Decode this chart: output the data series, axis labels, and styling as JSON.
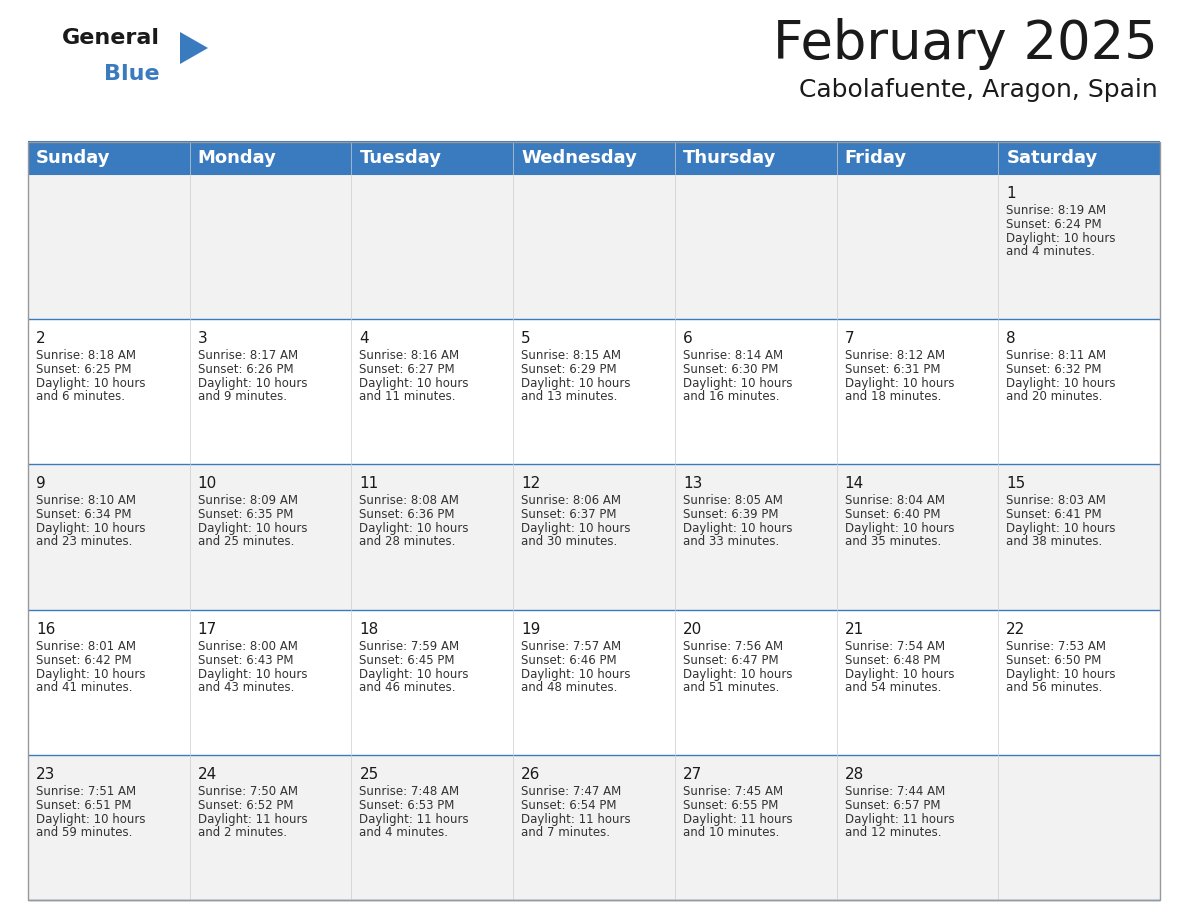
{
  "title": "February 2025",
  "subtitle": "Cabolafuente, Aragon, Spain",
  "header_color": "#3a7bbf",
  "header_text_color": "#ffffff",
  "cell_bg_row0": "#f2f2f2",
  "cell_bg_row1": "#ffffff",
  "row_sep_color": "#3a7bbf",
  "col_sep_color": "#cccccc",
  "day_headers": [
    "Sunday",
    "Monday",
    "Tuesday",
    "Wednesday",
    "Thursday",
    "Friday",
    "Saturday"
  ],
  "title_fontsize": 38,
  "subtitle_fontsize": 18,
  "header_fontsize": 13,
  "day_num_fontsize": 11,
  "cell_fontsize": 8.5,
  "logo_general_fontsize": 16,
  "logo_blue_fontsize": 16,
  "days": [
    {
      "day": 1,
      "col": 6,
      "row": 0,
      "sunrise": "8:19 AM",
      "sunset": "6:24 PM",
      "daylight_h": "10 hours",
      "daylight_m": "and 4 minutes."
    },
    {
      "day": 2,
      "col": 0,
      "row": 1,
      "sunrise": "8:18 AM",
      "sunset": "6:25 PM",
      "daylight_h": "10 hours",
      "daylight_m": "and 6 minutes."
    },
    {
      "day": 3,
      "col": 1,
      "row": 1,
      "sunrise": "8:17 AM",
      "sunset": "6:26 PM",
      "daylight_h": "10 hours",
      "daylight_m": "and 9 minutes."
    },
    {
      "day": 4,
      "col": 2,
      "row": 1,
      "sunrise": "8:16 AM",
      "sunset": "6:27 PM",
      "daylight_h": "10 hours",
      "daylight_m": "and 11 minutes."
    },
    {
      "day": 5,
      "col": 3,
      "row": 1,
      "sunrise": "8:15 AM",
      "sunset": "6:29 PM",
      "daylight_h": "10 hours",
      "daylight_m": "and 13 minutes."
    },
    {
      "day": 6,
      "col": 4,
      "row": 1,
      "sunrise": "8:14 AM",
      "sunset": "6:30 PM",
      "daylight_h": "10 hours",
      "daylight_m": "and 16 minutes."
    },
    {
      "day": 7,
      "col": 5,
      "row": 1,
      "sunrise": "8:12 AM",
      "sunset": "6:31 PM",
      "daylight_h": "10 hours",
      "daylight_m": "and 18 minutes."
    },
    {
      "day": 8,
      "col": 6,
      "row": 1,
      "sunrise": "8:11 AM",
      "sunset": "6:32 PM",
      "daylight_h": "10 hours",
      "daylight_m": "and 20 minutes."
    },
    {
      "day": 9,
      "col": 0,
      "row": 2,
      "sunrise": "8:10 AM",
      "sunset": "6:34 PM",
      "daylight_h": "10 hours",
      "daylight_m": "and 23 minutes."
    },
    {
      "day": 10,
      "col": 1,
      "row": 2,
      "sunrise": "8:09 AM",
      "sunset": "6:35 PM",
      "daylight_h": "10 hours",
      "daylight_m": "and 25 minutes."
    },
    {
      "day": 11,
      "col": 2,
      "row": 2,
      "sunrise": "8:08 AM",
      "sunset": "6:36 PM",
      "daylight_h": "10 hours",
      "daylight_m": "and 28 minutes."
    },
    {
      "day": 12,
      "col": 3,
      "row": 2,
      "sunrise": "8:06 AM",
      "sunset": "6:37 PM",
      "daylight_h": "10 hours",
      "daylight_m": "and 30 minutes."
    },
    {
      "day": 13,
      "col": 4,
      "row": 2,
      "sunrise": "8:05 AM",
      "sunset": "6:39 PM",
      "daylight_h": "10 hours",
      "daylight_m": "and 33 minutes."
    },
    {
      "day": 14,
      "col": 5,
      "row": 2,
      "sunrise": "8:04 AM",
      "sunset": "6:40 PM",
      "daylight_h": "10 hours",
      "daylight_m": "and 35 minutes."
    },
    {
      "day": 15,
      "col": 6,
      "row": 2,
      "sunrise": "8:03 AM",
      "sunset": "6:41 PM",
      "daylight_h": "10 hours",
      "daylight_m": "and 38 minutes."
    },
    {
      "day": 16,
      "col": 0,
      "row": 3,
      "sunrise": "8:01 AM",
      "sunset": "6:42 PM",
      "daylight_h": "10 hours",
      "daylight_m": "and 41 minutes."
    },
    {
      "day": 17,
      "col": 1,
      "row": 3,
      "sunrise": "8:00 AM",
      "sunset": "6:43 PM",
      "daylight_h": "10 hours",
      "daylight_m": "and 43 minutes."
    },
    {
      "day": 18,
      "col": 2,
      "row": 3,
      "sunrise": "7:59 AM",
      "sunset": "6:45 PM",
      "daylight_h": "10 hours",
      "daylight_m": "and 46 minutes."
    },
    {
      "day": 19,
      "col": 3,
      "row": 3,
      "sunrise": "7:57 AM",
      "sunset": "6:46 PM",
      "daylight_h": "10 hours",
      "daylight_m": "and 48 minutes."
    },
    {
      "day": 20,
      "col": 4,
      "row": 3,
      "sunrise": "7:56 AM",
      "sunset": "6:47 PM",
      "daylight_h": "10 hours",
      "daylight_m": "and 51 minutes."
    },
    {
      "day": 21,
      "col": 5,
      "row": 3,
      "sunrise": "7:54 AM",
      "sunset": "6:48 PM",
      "daylight_h": "10 hours",
      "daylight_m": "and 54 minutes."
    },
    {
      "day": 22,
      "col": 6,
      "row": 3,
      "sunrise": "7:53 AM",
      "sunset": "6:50 PM",
      "daylight_h": "10 hours",
      "daylight_m": "and 56 minutes."
    },
    {
      "day": 23,
      "col": 0,
      "row": 4,
      "sunrise": "7:51 AM",
      "sunset": "6:51 PM",
      "daylight_h": "10 hours",
      "daylight_m": "and 59 minutes."
    },
    {
      "day": 24,
      "col": 1,
      "row": 4,
      "sunrise": "7:50 AM",
      "sunset": "6:52 PM",
      "daylight_h": "11 hours",
      "daylight_m": "and 2 minutes."
    },
    {
      "day": 25,
      "col": 2,
      "row": 4,
      "sunrise": "7:48 AM",
      "sunset": "6:53 PM",
      "daylight_h": "11 hours",
      "daylight_m": "and 4 minutes."
    },
    {
      "day": 26,
      "col": 3,
      "row": 4,
      "sunrise": "7:47 AM",
      "sunset": "6:54 PM",
      "daylight_h": "11 hours",
      "daylight_m": "and 7 minutes."
    },
    {
      "day": 27,
      "col": 4,
      "row": 4,
      "sunrise": "7:45 AM",
      "sunset": "6:55 PM",
      "daylight_h": "11 hours",
      "daylight_m": "and 10 minutes."
    },
    {
      "day": 28,
      "col": 5,
      "row": 4,
      "sunrise": "7:44 AM",
      "sunset": "6:57 PM",
      "daylight_h": "11 hours",
      "daylight_m": "and 12 minutes."
    }
  ]
}
